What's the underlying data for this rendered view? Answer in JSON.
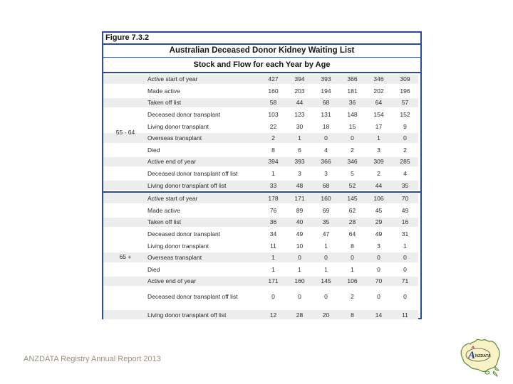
{
  "figure_label": "Figure 7.3.2",
  "title": "Australian Deceased Donor Kidney Waiting List",
  "subtitle": "Stock and Flow for each Year by Age",
  "footer": "ANZDATA Registry Annual Report 2013",
  "logo": {
    "text": "ANZDATA"
  },
  "colors": {
    "border_blue": "#2b4b9b",
    "stripe_gray": "#ededed",
    "header_text": "#141414",
    "body_text": "#2b2b2b",
    "footer_text": "#9a8f83",
    "logo_fill": "#f8f2c6",
    "logo_stroke": "#5b8a3c",
    "logo_navy": "#1c3f94",
    "logo_red": "#cc2222"
  },
  "table": {
    "sections": [
      {
        "age_group": "55 - 64",
        "rows": [
          {
            "label": "Active start of year",
            "values": [
              427,
              394,
              393,
              366,
              346,
              309
            ]
          },
          {
            "label": "Made active",
            "values": [
              160,
              203,
              194,
              181,
              202,
              196
            ]
          },
          {
            "label": "Taken off list",
            "values": [
              58,
              44,
              68,
              36,
              64,
              57
            ]
          },
          {
            "label": "Deceased donor transplant",
            "values": [
              103,
              123,
              131,
              148,
              154,
              152
            ]
          },
          {
            "label": "Living donor transplant",
            "values": [
              22,
              30,
              18,
              15,
              17,
              9
            ]
          },
          {
            "label": "Overseas transplant",
            "values": [
              2,
              1,
              0,
              0,
              1,
              0
            ]
          },
          {
            "label": "Died",
            "values": [
              8,
              6,
              4,
              2,
              3,
              2
            ]
          },
          {
            "label": "Active end of year",
            "values": [
              394,
              393,
              366,
              346,
              309,
              285
            ]
          },
          {
            "label": "Deceased donor  transplant off list",
            "values": [
              1,
              3,
              3,
              5,
              2,
              4
            ]
          },
          {
            "label": "Living donor  transplant off list",
            "values": [
              33,
              48,
              68,
              52,
              44,
              35
            ]
          }
        ]
      },
      {
        "age_group": "65 +",
        "rows": [
          {
            "label": "Active start of year",
            "values": [
              178,
              171,
              160,
              145,
              106,
              70
            ]
          },
          {
            "label": "Made active",
            "values": [
              76,
              89,
              69,
              62,
              45,
              49
            ]
          },
          {
            "label": "Taken off list",
            "values": [
              36,
              40,
              35,
              28,
              29,
              16
            ]
          },
          {
            "label": "Deceased donor transplant",
            "values": [
              34,
              49,
              47,
              64,
              49,
              31
            ]
          },
          {
            "label": "Living donor transplant",
            "values": [
              11,
              10,
              1,
              8,
              3,
              1
            ]
          },
          {
            "label": "Overseas transplant",
            "values": [
              1,
              0,
              0,
              0,
              0,
              0
            ]
          },
          {
            "label": "Died",
            "values": [
              1,
              1,
              1,
              1,
              0,
              0
            ]
          },
          {
            "label": "Active end of year",
            "values": [
              171,
              160,
              145,
              106,
              70,
              71
            ]
          },
          {
            "label": "Deceased donor  transplant off list",
            "values": [
              0,
              0,
              0,
              2,
              0,
              0
            ]
          },
          {
            "label": "Living donor  transplant off list",
            "values": [
              12,
              28,
              20,
              8,
              14,
              11
            ]
          }
        ]
      }
    ]
  }
}
